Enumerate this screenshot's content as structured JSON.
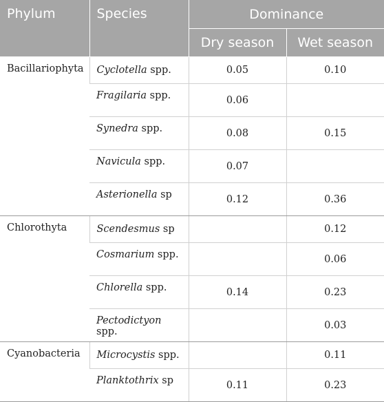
{
  "headers": {
    "phylum": "Phylum",
    "species": "Species",
    "dominance": "Dominance",
    "dry_season": "Dry season",
    "wet_season": "Wet season"
  },
  "groups": [
    {
      "phylum": "Bacillariophyta",
      "rows": [
        {
          "genus": "Cyclotella",
          "suffix": " spp.",
          "dry": "0.05",
          "wet": "0.10"
        },
        {
          "genus": "Fragilaria",
          "suffix": " spp.",
          "dry": "0.06",
          "wet": ""
        },
        {
          "genus": "Synedra",
          "suffix": " spp.",
          "dry": "0.08",
          "wet": "0.15"
        },
        {
          "genus": "Navicula",
          "suffix": " spp.",
          "dry": "0.07",
          "wet": ""
        },
        {
          "genus": "Asterionella",
          "suffix": " sp",
          "dry": "0.12",
          "wet": "0.36"
        }
      ]
    },
    {
      "phylum": "Chlorothyta",
      "rows": [
        {
          "genus": "Scendesmus",
          "suffix": " sp",
          "dry": "",
          "wet": "0.12"
        },
        {
          "genus": "Cosmarium",
          "suffix": " spp.",
          "dry": "",
          "wet": "0.06"
        },
        {
          "genus": "Chlorella",
          "suffix": " spp.",
          "dry": "0.14",
          "wet": "0.23"
        },
        {
          "genus": "Pectodictyon",
          "suffix": " spp.",
          "dry": "",
          "wet": "0.03"
        }
      ]
    },
    {
      "phylum": "Cyanobacteria",
      "rows": [
        {
          "genus": "Microcystis",
          "suffix": " spp.",
          "dry": "",
          "wet": "0.11"
        },
        {
          "genus": "Planktothrix",
          "suffix": " sp",
          "dry": "0.11",
          "wet": "0.23"
        }
      ]
    }
  ]
}
